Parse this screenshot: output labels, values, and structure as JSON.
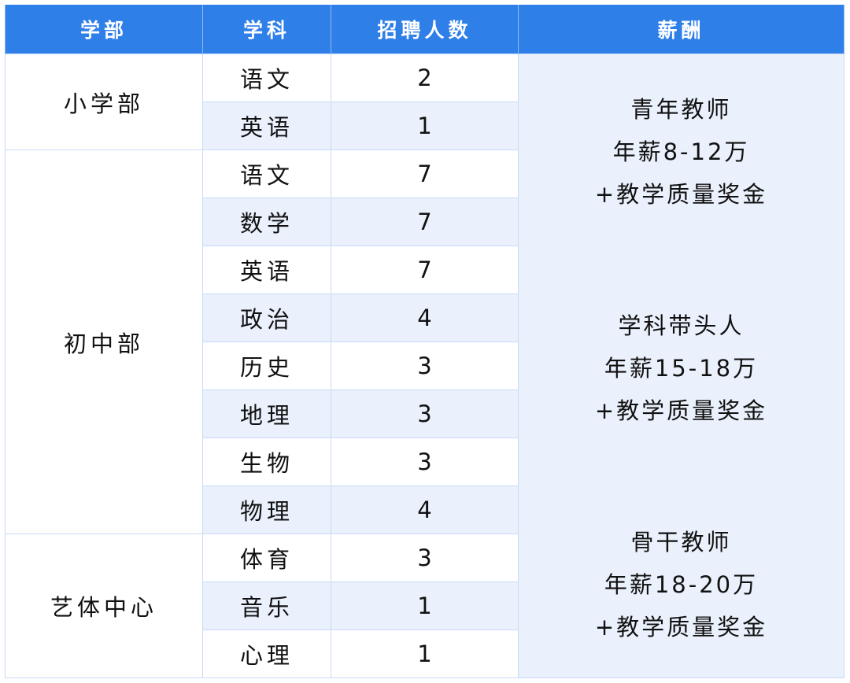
{
  "headers": [
    "学部",
    "学科",
    "招聘人数",
    "薪酬"
  ],
  "departments": [
    {
      "name": "小学部",
      "subjects": [
        {
          "subject": "语文",
          "count": "2"
        },
        {
          "subject": "英语",
          "count": "1"
        }
      ]
    },
    {
      "name": "初中部",
      "subjects": [
        {
          "subject": "语文",
          "count": "7"
        },
        {
          "subject": "数学",
          "count": "7"
        },
        {
          "subject": "英语",
          "count": "7"
        },
        {
          "subject": "政治",
          "count": "4"
        },
        {
          "subject": "历史",
          "count": "3"
        },
        {
          "subject": "地理",
          "count": "3"
        },
        {
          "subject": "生物",
          "count": "3"
        },
        {
          "subject": "物理",
          "count": "4"
        }
      ]
    },
    {
      "name": "艺体中心",
      "subjects": [
        {
          "subject": "体育",
          "count": "3"
        },
        {
          "subject": "音乐",
          "count": "1"
        },
        {
          "subject": "心理",
          "count": "1"
        }
      ]
    }
  ],
  "salary": [
    {
      "title": "青年教师",
      "range": "年薪8-12万",
      "bonus": "+教学质量奖金"
    },
    {
      "title": "学科带头人",
      "range": "年薪15-18万",
      "bonus": "+教学质量奖金"
    },
    {
      "title": "骨干教师",
      "range": "年薪18-20万",
      "bonus": "+教学质量奖金"
    }
  ],
  "colors": {
    "header": "#2f7fe9",
    "alt_row": "#eaf1fc",
    "border": "#c8dbf5"
  }
}
